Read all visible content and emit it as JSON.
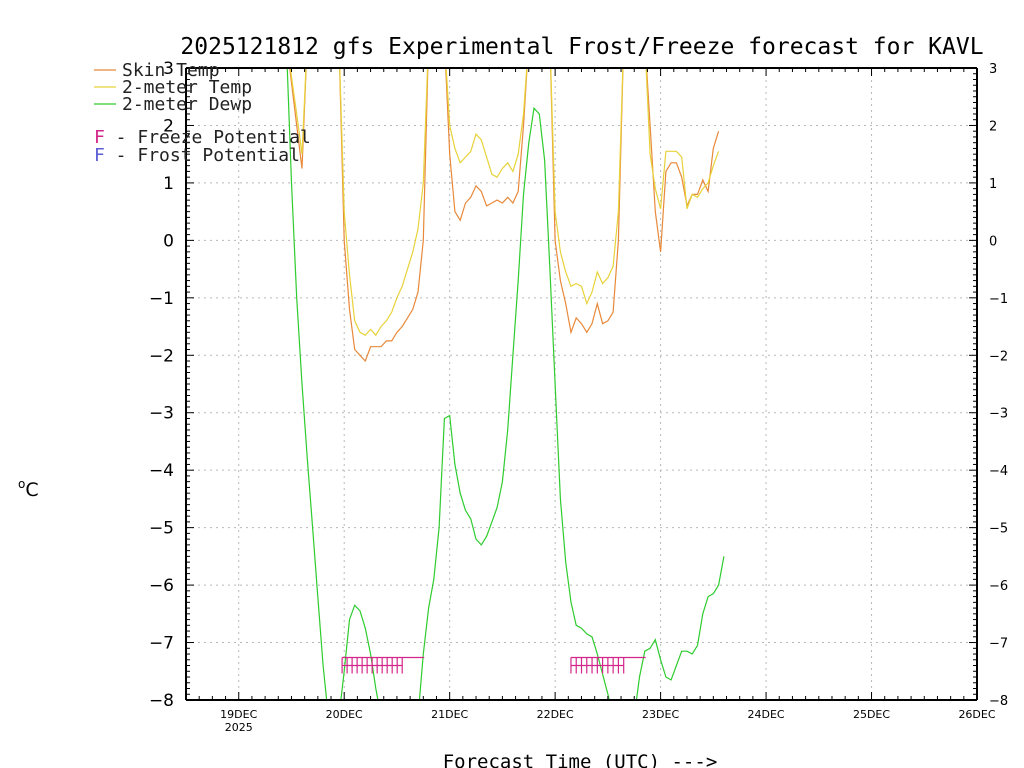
{
  "chart_data": {
    "type": "line",
    "title": "2025121812 gfs Experimental Frost/Freeze forecast for KAVL",
    "xlabel": "Forecast Time (UTC) --->",
    "ylabel": "°C",
    "ylabel_unit_sup": "o",
    "ylabel_unit": "C",
    "ylim": [
      -8,
      3
    ],
    "xlim": [
      0,
      7.5
    ],
    "grid": true,
    "x_ticks": [
      {
        "x": 0.5,
        "label": "19DEC",
        "sub": "2025"
      },
      {
        "x": 1.5,
        "label": "20DEC",
        "sub": ""
      },
      {
        "x": 2.5,
        "label": "21DEC",
        "sub": ""
      },
      {
        "x": 3.5,
        "label": "22DEC",
        "sub": ""
      },
      {
        "x": 4.5,
        "label": "23DEC",
        "sub": ""
      },
      {
        "x": 5.5,
        "label": "24DEC",
        "sub": ""
      },
      {
        "x": 6.5,
        "label": "25DEC",
        "sub": ""
      },
      {
        "x": 7.5,
        "label": "26DEC",
        "sub": ""
      }
    ],
    "y_ticks": [
      {
        "v": 3,
        "label": "3"
      },
      {
        "v": 2,
        "label": "2"
      },
      {
        "v": 1,
        "label": "1"
      },
      {
        "v": 0,
        "label": "0"
      },
      {
        "v": -1,
        "label": "−1"
      },
      {
        "v": -2,
        "label": "−2"
      },
      {
        "v": -3,
        "label": "−3"
      },
      {
        "v": -4,
        "label": "−4"
      },
      {
        "v": -5,
        "label": "−5"
      },
      {
        "v": -6,
        "label": "−6"
      },
      {
        "v": -7,
        "label": "−7"
      },
      {
        "v": -8,
        "label": "−8"
      }
    ],
    "legend": [
      {
        "name": "Skin Temp",
        "color": "#e8893a"
      },
      {
        "name": "2-meter Temp",
        "color": "#e8d23a"
      },
      {
        "name": "2-meter Dewp",
        "color": "#2ecc2e"
      }
    ],
    "potential_legend": [
      {
        "letter": "F",
        "text": " - Freeze Potential",
        "color": "#d4268a"
      },
      {
        "letter": "F",
        "text": " - Frost Potential",
        "color": "#5b5bd6"
      }
    ],
    "series": [
      {
        "name": "Skin Temp",
        "color": "#e8893a",
        "points": [
          [
            0.95,
            3.5
          ],
          [
            1.05,
            2.0
          ],
          [
            1.1,
            1.25
          ],
          [
            1.15,
            3.5
          ],
          [
            1.45,
            3.5
          ],
          [
            1.5,
            0.0
          ],
          [
            1.55,
            -1.2
          ],
          [
            1.6,
            -1.9
          ],
          [
            1.65,
            -2.0
          ],
          [
            1.7,
            -2.1
          ],
          [
            1.75,
            -1.85
          ],
          [
            1.8,
            -1.85
          ],
          [
            1.85,
            -1.85
          ],
          [
            1.9,
            -1.75
          ],
          [
            1.95,
            -1.75
          ],
          [
            2.0,
            -1.6
          ],
          [
            2.05,
            -1.5
          ],
          [
            2.1,
            -1.35
          ],
          [
            2.15,
            -1.2
          ],
          [
            2.2,
            -0.9
          ],
          [
            2.25,
            0.0
          ],
          [
            2.3,
            3.5
          ],
          [
            2.45,
            3.5
          ],
          [
            2.5,
            1.5
          ],
          [
            2.55,
            0.5
          ],
          [
            2.6,
            0.35
          ],
          [
            2.65,
            0.65
          ],
          [
            2.7,
            0.75
          ],
          [
            2.75,
            0.95
          ],
          [
            2.8,
            0.85
          ],
          [
            2.85,
            0.6
          ],
          [
            2.9,
            0.65
          ],
          [
            2.95,
            0.7
          ],
          [
            3.0,
            0.65
          ],
          [
            3.05,
            0.75
          ],
          [
            3.1,
            0.65
          ],
          [
            3.15,
            0.85
          ],
          [
            3.2,
            2.0
          ],
          [
            3.25,
            3.5
          ],
          [
            3.45,
            3.5
          ],
          [
            3.5,
            0.0
          ],
          [
            3.55,
            -0.7
          ],
          [
            3.6,
            -1.1
          ],
          [
            3.65,
            -1.6
          ],
          [
            3.7,
            -1.35
          ],
          [
            3.75,
            -1.45
          ],
          [
            3.8,
            -1.6
          ],
          [
            3.85,
            -1.45
          ],
          [
            3.9,
            -1.1
          ],
          [
            3.95,
            -1.45
          ],
          [
            4.0,
            -1.4
          ],
          [
            4.05,
            -1.25
          ],
          [
            4.1,
            0.0
          ],
          [
            4.15,
            3.5
          ],
          [
            4.35,
            3.5
          ],
          [
            4.4,
            2.0
          ],
          [
            4.45,
            0.5
          ],
          [
            4.5,
            -0.2
          ],
          [
            4.55,
            1.2
          ],
          [
            4.6,
            1.35
          ],
          [
            4.65,
            1.35
          ],
          [
            4.7,
            1.1
          ],
          [
            4.75,
            0.6
          ],
          [
            4.8,
            0.8
          ],
          [
            4.85,
            0.8
          ],
          [
            4.9,
            1.05
          ],
          [
            4.95,
            0.85
          ],
          [
            5.0,
            1.6
          ],
          [
            5.05,
            1.9
          ]
        ]
      },
      {
        "name": "2-meter Temp",
        "color": "#e8d23a",
        "points": [
          [
            0.95,
            3.5
          ],
          [
            1.05,
            2.2
          ],
          [
            1.1,
            1.5
          ],
          [
            1.15,
            3.5
          ],
          [
            1.45,
            3.5
          ],
          [
            1.5,
            0.5
          ],
          [
            1.55,
            -0.6
          ],
          [
            1.6,
            -1.4
          ],
          [
            1.65,
            -1.6
          ],
          [
            1.7,
            -1.65
          ],
          [
            1.75,
            -1.55
          ],
          [
            1.8,
            -1.65
          ],
          [
            1.85,
            -1.5
          ],
          [
            1.9,
            -1.4
          ],
          [
            1.95,
            -1.25
          ],
          [
            2.0,
            -1.0
          ],
          [
            2.05,
            -0.8
          ],
          [
            2.1,
            -0.5
          ],
          [
            2.15,
            -0.2
          ],
          [
            2.2,
            0.2
          ],
          [
            2.25,
            1.0
          ],
          [
            2.3,
            3.5
          ],
          [
            2.45,
            3.5
          ],
          [
            2.5,
            2.0
          ],
          [
            2.55,
            1.6
          ],
          [
            2.6,
            1.35
          ],
          [
            2.65,
            1.45
          ],
          [
            2.7,
            1.55
          ],
          [
            2.75,
            1.85
          ],
          [
            2.8,
            1.75
          ],
          [
            2.85,
            1.45
          ],
          [
            2.9,
            1.15
          ],
          [
            2.95,
            1.1
          ],
          [
            3.0,
            1.25
          ],
          [
            3.05,
            1.35
          ],
          [
            3.1,
            1.2
          ],
          [
            3.15,
            1.5
          ],
          [
            3.2,
            2.2
          ],
          [
            3.25,
            3.5
          ],
          [
            3.45,
            3.5
          ],
          [
            3.5,
            0.5
          ],
          [
            3.55,
            -0.2
          ],
          [
            3.6,
            -0.55
          ],
          [
            3.65,
            -0.8
          ],
          [
            3.7,
            -0.75
          ],
          [
            3.75,
            -0.8
          ],
          [
            3.8,
            -1.1
          ],
          [
            3.85,
            -0.9
          ],
          [
            3.9,
            -0.55
          ],
          [
            3.95,
            -0.75
          ],
          [
            4.0,
            -0.65
          ],
          [
            4.05,
            -0.45
          ],
          [
            4.1,
            0.5
          ],
          [
            4.15,
            3.5
          ],
          [
            4.35,
            3.5
          ],
          [
            4.4,
            1.5
          ],
          [
            4.45,
            0.9
          ],
          [
            4.5,
            0.55
          ],
          [
            4.55,
            1.55
          ],
          [
            4.6,
            1.55
          ],
          [
            4.65,
            1.55
          ],
          [
            4.7,
            1.45
          ],
          [
            4.75,
            0.55
          ],
          [
            4.8,
            0.8
          ],
          [
            4.85,
            0.75
          ],
          [
            4.9,
            0.9
          ],
          [
            4.95,
            1.0
          ],
          [
            5.0,
            1.3
          ],
          [
            5.05,
            1.55
          ]
        ]
      },
      {
        "name": "2-meter Dewp",
        "color": "#2ecc2e",
        "points": [
          [
            0.95,
            3.5
          ],
          [
            1.0,
            1.0
          ],
          [
            1.05,
            -1.0
          ],
          [
            1.1,
            -2.5
          ],
          [
            1.15,
            -3.8
          ],
          [
            1.2,
            -5.0
          ],
          [
            1.25,
            -6.2
          ],
          [
            1.3,
            -7.4
          ],
          [
            1.35,
            -8.3
          ],
          [
            1.45,
            -8.3
          ],
          [
            1.5,
            -7.5
          ],
          [
            1.55,
            -6.6
          ],
          [
            1.6,
            -6.35
          ],
          [
            1.65,
            -6.45
          ],
          [
            1.7,
            -6.75
          ],
          [
            1.75,
            -7.2
          ],
          [
            1.8,
            -7.8
          ],
          [
            1.85,
            -8.3
          ],
          [
            2.2,
            -8.3
          ],
          [
            2.25,
            -7.2
          ],
          [
            2.3,
            -6.4
          ],
          [
            2.35,
            -5.9
          ],
          [
            2.4,
            -5.0
          ],
          [
            2.45,
            -3.1
          ],
          [
            2.5,
            -3.05
          ],
          [
            2.55,
            -3.9
          ],
          [
            2.6,
            -4.4
          ],
          [
            2.65,
            -4.7
          ],
          [
            2.7,
            -4.85
          ],
          [
            2.75,
            -5.2
          ],
          [
            2.8,
            -5.3
          ],
          [
            2.85,
            -5.15
          ],
          [
            2.9,
            -4.9
          ],
          [
            2.95,
            -4.65
          ],
          [
            3.0,
            -4.2
          ],
          [
            3.05,
            -3.3
          ],
          [
            3.1,
            -2.0
          ],
          [
            3.15,
            -0.7
          ],
          [
            3.2,
            0.8
          ],
          [
            3.25,
            1.7
          ],
          [
            3.3,
            2.3
          ],
          [
            3.35,
            2.2
          ],
          [
            3.4,
            1.4
          ],
          [
            3.45,
            -0.5
          ],
          [
            3.5,
            -2.5
          ],
          [
            3.55,
            -4.5
          ],
          [
            3.6,
            -5.6
          ],
          [
            3.65,
            -6.3
          ],
          [
            3.7,
            -6.7
          ],
          [
            3.75,
            -6.75
          ],
          [
            3.8,
            -6.85
          ],
          [
            3.85,
            -6.9
          ],
          [
            3.9,
            -7.2
          ],
          [
            3.95,
            -7.55
          ],
          [
            4.0,
            -7.9
          ],
          [
            4.05,
            -8.3
          ],
          [
            4.25,
            -8.3
          ],
          [
            4.3,
            -7.6
          ],
          [
            4.35,
            -7.15
          ],
          [
            4.4,
            -7.1
          ],
          [
            4.45,
            -6.95
          ],
          [
            4.5,
            -7.3
          ],
          [
            4.55,
            -7.6
          ],
          [
            4.6,
            -7.65
          ],
          [
            4.65,
            -7.4
          ],
          [
            4.7,
            -7.15
          ],
          [
            4.75,
            -7.15
          ],
          [
            4.8,
            -7.2
          ],
          [
            4.85,
            -7.05
          ],
          [
            4.9,
            -6.5
          ],
          [
            4.95,
            -6.2
          ],
          [
            5.0,
            -6.15
          ],
          [
            5.05,
            -6.0
          ],
          [
            5.1,
            -5.5
          ]
        ]
      }
    ],
    "freeze_markers": [
      {
        "x_start": 1.48,
        "x_end": 2.05,
        "value": -7.4,
        "tick_count": 13
      },
      {
        "x_start": 3.65,
        "x_end": 4.15,
        "value": -7.4,
        "tick_count": 11
      }
    ]
  }
}
